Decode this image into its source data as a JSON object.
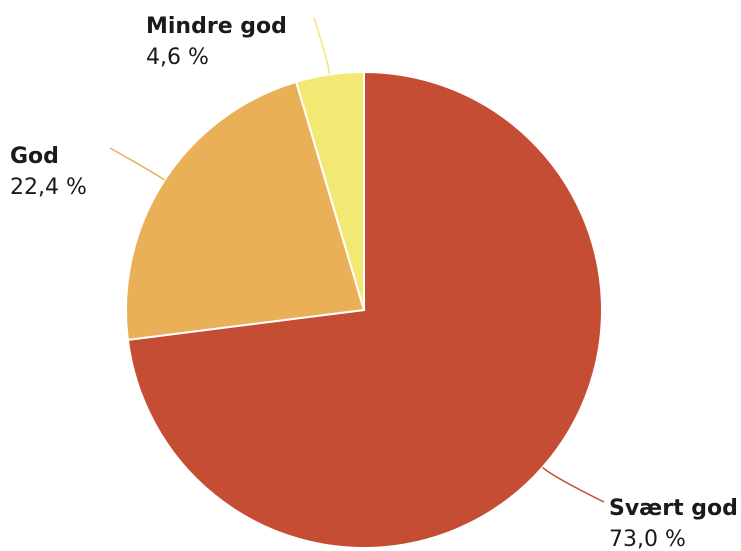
{
  "chart_data": {
    "type": "pie",
    "title": "",
    "slices": [
      {
        "label": "Svært god",
        "value": 73.0,
        "value_label": "73,0 %",
        "color": "#c44d33"
      },
      {
        "label": "God",
        "value": 22.4,
        "value_label": "22,4 %",
        "color": "#e9b057"
      },
      {
        "label": "Mindre god",
        "value": 4.6,
        "value_label": "4,6 %",
        "color": "#f2e873"
      }
    ],
    "start_angle_deg": 0,
    "direction": "clockwise"
  }
}
